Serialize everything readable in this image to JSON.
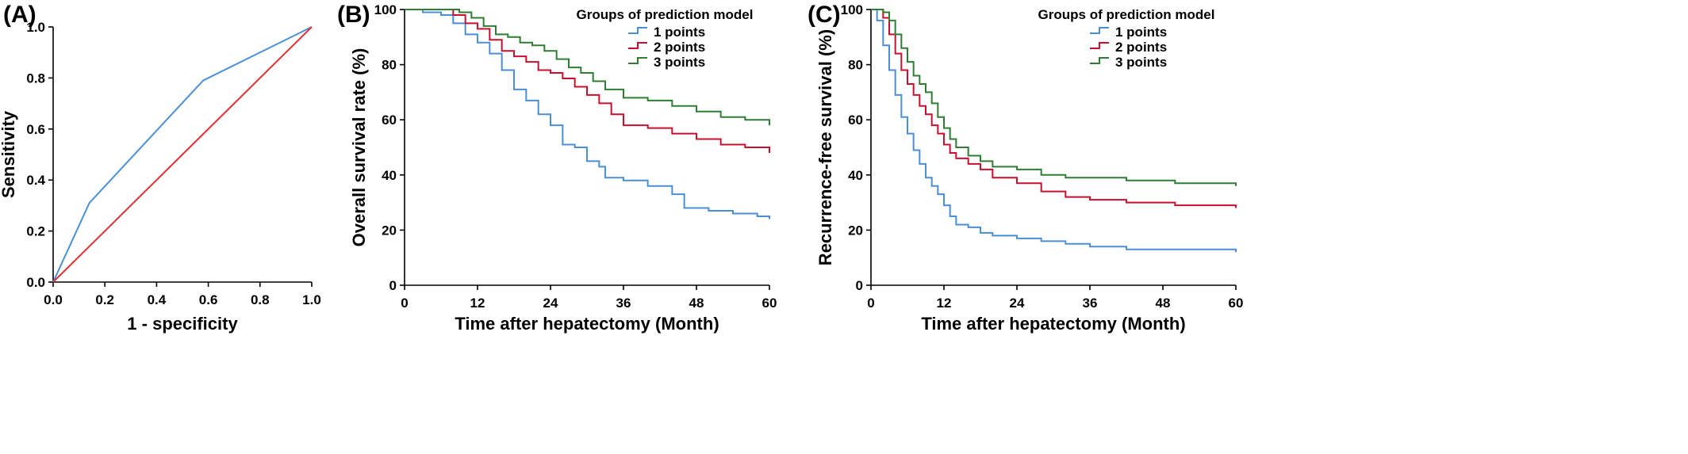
{
  "chart_data": [
    {
      "id": "A",
      "type": "line",
      "panel_label": "(A)",
      "xlabel": "1 - specificity",
      "ylabel": "Sensitivity",
      "xlim": [
        0,
        1
      ],
      "ylim": [
        0,
        1
      ],
      "xticks": [
        "0.0",
        "0.2",
        "0.4",
        "0.6",
        "0.8",
        "1.0"
      ],
      "yticks": [
        "0.0",
        "0.2",
        "0.4",
        "0.6",
        "0.8",
        "1.0"
      ],
      "grid": false,
      "series": [
        {
          "color": "#4a8fd6",
          "x": [
            0,
            0.14,
            0.58,
            1.0
          ],
          "y": [
            0,
            0.31,
            0.79,
            1.0
          ]
        },
        {
          "color": "#e03030",
          "x": [
            0,
            1.0
          ],
          "y": [
            0,
            1.0
          ]
        }
      ]
    },
    {
      "id": "B",
      "type": "line",
      "step": true,
      "panel_label": "(B)",
      "xlabel": "Time after hepatectomy (Month)",
      "ylabel": "Overall survival rate (%)",
      "xlim": [
        0,
        60
      ],
      "ylim": [
        0,
        100
      ],
      "xticks": [
        "0",
        "12",
        "24",
        "36",
        "48",
        "60"
      ],
      "yticks": [
        "0",
        "20",
        "40",
        "60",
        "80",
        "100"
      ],
      "grid": false,
      "legend_title": "Groups of prediction model",
      "legend_position": "top-right",
      "series": [
        {
          "name": "1 points",
          "color": "#4a8fd6",
          "x": [
            0,
            3,
            6,
            8,
            10,
            12,
            14,
            16,
            18,
            20,
            22,
            24,
            26,
            28,
            30,
            32,
            33,
            36,
            40,
            44,
            46,
            50,
            54,
            58,
            60
          ],
          "y": [
            100,
            99,
            98,
            95,
            91,
            88,
            84,
            78,
            71,
            67,
            62,
            58,
            51,
            50,
            45,
            43,
            39,
            38,
            36,
            33,
            28,
            27,
            26,
            25,
            24
          ]
        },
        {
          "name": "2 points",
          "color": "#c8102e",
          "x": [
            0,
            5,
            8,
            10,
            12,
            14,
            16,
            18,
            20,
            22,
            24,
            26,
            28,
            30,
            32,
            34,
            36,
            40,
            44,
            48,
            52,
            56,
            60
          ],
          "y": [
            100,
            100,
            98,
            95,
            93,
            89,
            85,
            83,
            81,
            78,
            77,
            75,
            72,
            69,
            66,
            62,
            58,
            57,
            55,
            53,
            51,
            50,
            48
          ]
        },
        {
          "name": "3 points",
          "color": "#2e7d32",
          "x": [
            0,
            7,
            9,
            11,
            13,
            15,
            17,
            19,
            21,
            23,
            25,
            27,
            29,
            31,
            33,
            36,
            40,
            44,
            48,
            52,
            56,
            60
          ],
          "y": [
            100,
            100,
            99,
            97,
            94,
            91,
            90,
            88,
            87,
            85,
            82,
            79,
            77,
            74,
            71,
            68,
            67,
            65,
            63,
            61,
            60,
            58
          ]
        }
      ]
    },
    {
      "id": "C",
      "type": "line",
      "step": true,
      "panel_label": "(C)",
      "xlabel": "Time after hepatectomy (Month)",
      "ylabel": "Recurrence-free survival (%)",
      "xlim": [
        0,
        60
      ],
      "ylim": [
        0,
        100
      ],
      "xticks": [
        "0",
        "12",
        "24",
        "36",
        "48",
        "60"
      ],
      "yticks": [
        "0",
        "20",
        "40",
        "60",
        "80",
        "100"
      ],
      "grid": false,
      "legend_title": "Groups of prediction model",
      "legend_position": "top-right",
      "series": [
        {
          "name": "1 points",
          "color": "#4a8fd6",
          "x": [
            0,
            1,
            2,
            3,
            4,
            5,
            6,
            7,
            8,
            9,
            10,
            11,
            12,
            13,
            14,
            16,
            18,
            20,
            24,
            28,
            32,
            36,
            42,
            50,
            60
          ],
          "y": [
            100,
            96,
            87,
            78,
            69,
            61,
            55,
            49,
            44,
            39,
            36,
            33,
            29,
            25,
            22,
            21,
            19,
            18,
            17,
            16,
            15,
            14,
            13,
            13,
            12
          ]
        },
        {
          "name": "2 points",
          "color": "#c8102e",
          "x": [
            0,
            1,
            2,
            3,
            4,
            5,
            6,
            7,
            8,
            9,
            10,
            11,
            12,
            13,
            14,
            16,
            18,
            20,
            24,
            28,
            32,
            36,
            42,
            50,
            60
          ],
          "y": [
            100,
            100,
            97,
            91,
            84,
            78,
            73,
            69,
            65,
            62,
            58,
            55,
            51,
            48,
            46,
            44,
            42,
            39,
            37,
            34,
            32,
            31,
            30,
            29,
            28
          ]
        },
        {
          "name": "3 points",
          "color": "#2e7d32",
          "x": [
            0,
            1,
            2,
            3,
            4,
            5,
            6,
            7,
            8,
            9,
            10,
            11,
            12,
            13,
            14,
            16,
            18,
            20,
            24,
            28,
            32,
            36,
            42,
            50,
            60
          ],
          "y": [
            100,
            100,
            99,
            96,
            91,
            86,
            81,
            76,
            73,
            70,
            66,
            61,
            57,
            53,
            50,
            47,
            45,
            43,
            42,
            40,
            39,
            39,
            38,
            37,
            36
          ]
        }
      ]
    }
  ]
}
